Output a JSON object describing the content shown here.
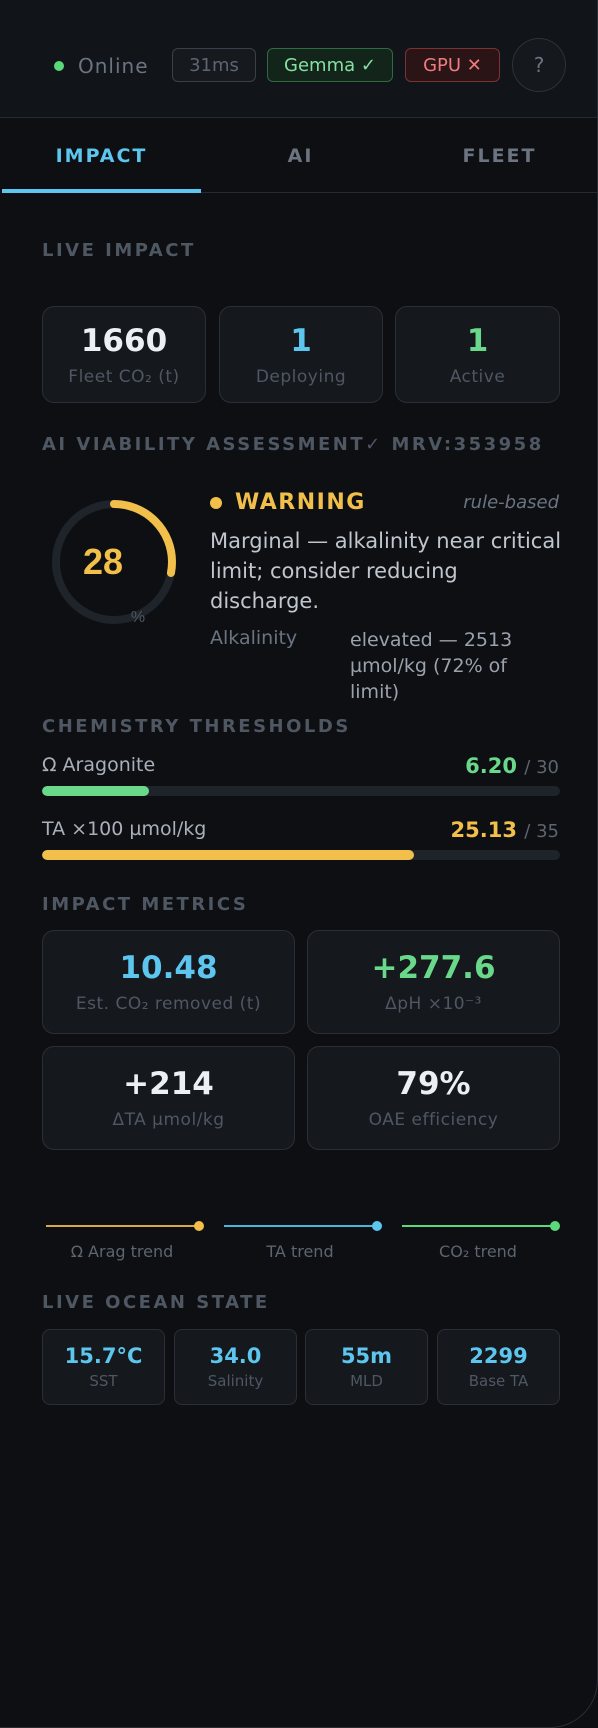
{
  "status": {
    "online_label": "Online",
    "latency": "31ms",
    "model_badge": "Gemma ✓",
    "gpu_badge": "GPU ✕",
    "help_label": "?"
  },
  "tabs": [
    {
      "label": "IMPACT",
      "active": true
    },
    {
      "label": "AI",
      "active": false
    },
    {
      "label": "FLEET",
      "active": false
    }
  ],
  "live_impact": {
    "title": "LIVE IMPACT",
    "cards": [
      {
        "value": "1660",
        "label": "Fleet CO₂ (t)"
      },
      {
        "value": "1",
        "label": "Deploying"
      },
      {
        "value": "1",
        "label": "Active"
      }
    ]
  },
  "ai_assessment": {
    "title": "AI VIABILITY ASSESSMENT",
    "mrv": "✓ MRV:353958",
    "score": "28",
    "score_fraction": 0.28,
    "score_unit": "%",
    "status": "WARNING",
    "source": "rule-based",
    "message": "Marginal — alkalinity near critical limit; consider reducing discharge.",
    "detail_label": "Alkalinity",
    "detail_value": "elevated — 2513 µmol/kg (72% of limit)"
  },
  "thresholds": {
    "title": "CHEMISTRY THRESHOLDS",
    "items": [
      {
        "label": "Ω Aragonite",
        "value": "6.20",
        "max": "/ 30",
        "fraction": 0.2067,
        "color": "#6ad88a"
      },
      {
        "label": "TA ×100 µmol/kg",
        "value": "25.13",
        "max": "/ 35",
        "fraction": 0.718,
        "color": "#f2c04a"
      }
    ]
  },
  "impact_metrics": {
    "title": "IMPACT METRICS",
    "cards": [
      {
        "value": "10.48",
        "label": "Est. CO₂ removed (t)"
      },
      {
        "value": "+277.6",
        "label": "ΔpH ×10⁻³"
      },
      {
        "value": "+214",
        "label": "ΔTA µmol/kg"
      },
      {
        "value": "79%",
        "label": "OAE efficiency"
      }
    ]
  },
  "trends": [
    {
      "label": "Ω Arag trend",
      "color": "#d4a94a"
    },
    {
      "label": "TA trend",
      "color": "#4fb3dc"
    },
    {
      "label": "CO₂ trend",
      "color": "#5bd97a"
    }
  ],
  "ocean_state": {
    "title": "LIVE OCEAN STATE",
    "cards": [
      {
        "value": "15.7°C",
        "label": "SST"
      },
      {
        "value": "34.0",
        "label": "Salinity"
      },
      {
        "value": "55m",
        "label": "MLD"
      },
      {
        "value": "2299",
        "label": "Base TA"
      }
    ]
  }
}
